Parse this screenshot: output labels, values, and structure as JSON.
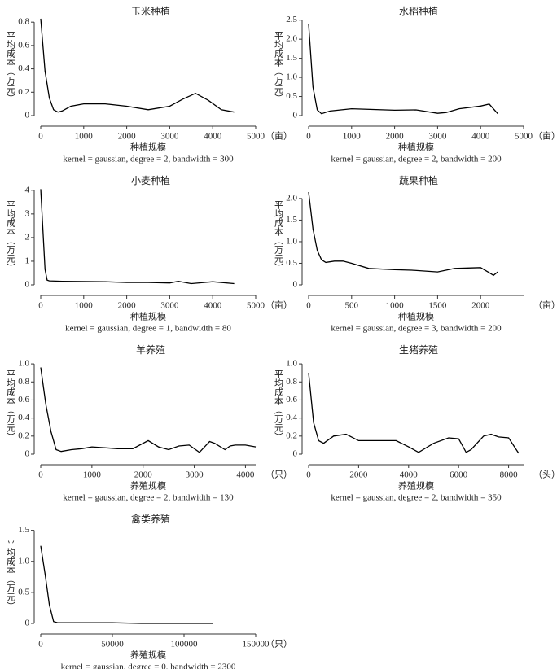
{
  "chart_data": [
    {
      "type": "line",
      "title": "玉米种植",
      "y_label": "平均成本（万元）",
      "x_label": "种植规模",
      "x_unit": "（亩）",
      "note": "kernel = gaussian, degree = 2, bandwidth = 300",
      "color": "#000000",
      "xlim": [
        0,
        5000
      ],
      "xticks": [
        0,
        1000,
        2000,
        3000,
        4000,
        5000
      ],
      "ylim": [
        0,
        0.85
      ],
      "yticks": [
        0,
        0.2,
        0.4,
        0.6,
        0.8
      ],
      "x": [
        0,
        100,
        200,
        300,
        400,
        500,
        700,
        1000,
        1500,
        2000,
        2500,
        3000,
        3300,
        3600,
        3900,
        4200,
        4500
      ],
      "values": [
        0.83,
        0.38,
        0.15,
        0.05,
        0.03,
        0.04,
        0.08,
        0.1,
        0.1,
        0.08,
        0.05,
        0.08,
        0.14,
        0.19,
        0.13,
        0.05,
        0.03
      ]
    },
    {
      "type": "line",
      "title": "水稻种植",
      "y_label": "平均成本（万元）",
      "x_label": "种植规模",
      "x_unit": "（亩）",
      "note": "kernel = gaussian, degree = 2, bandwidth = 200",
      "color": "#000000",
      "xlim": [
        0,
        5000
      ],
      "xticks": [
        0,
        1000,
        2000,
        3000,
        4000,
        5000
      ],
      "ylim": [
        0,
        2.6
      ],
      "yticks": [
        0,
        0.5,
        {
          "value": 1,
          "label": "1.0"
        },
        1.5,
        {
          "value": 2,
          "label": "2.0"
        },
        2.5
      ],
      "x": [
        0,
        100,
        200,
        300,
        500,
        1000,
        1500,
        2000,
        2500,
        3000,
        3200,
        3500,
        4000,
        4200,
        4400
      ],
      "values": [
        2.4,
        0.75,
        0.15,
        0.05,
        0.12,
        0.18,
        0.16,
        0.14,
        0.15,
        0.06,
        0.08,
        0.18,
        0.25,
        0.3,
        0.05
      ]
    },
    {
      "type": "line",
      "title": "小麦种植",
      "y_label": "平均成本（万元）",
      "x_label": "种植规模",
      "x_unit": "（亩）",
      "note": "kernel = gaussian, degree = 1, bandwidth = 80",
      "color": "#000000",
      "xlim": [
        0,
        5000
      ],
      "xticks": [
        0,
        1000,
        2000,
        3000,
        4000,
        5000
      ],
      "ylim": [
        0,
        4.2
      ],
      "yticks": [
        0,
        1,
        2,
        3,
        4
      ],
      "x": [
        0,
        100,
        150,
        200,
        500,
        1000,
        1500,
        2000,
        2500,
        3000,
        3200,
        3500,
        4000,
        4500
      ],
      "values": [
        4.05,
        0.65,
        0.2,
        0.17,
        0.15,
        0.14,
        0.13,
        0.1,
        0.1,
        0.08,
        0.15,
        0.05,
        0.13,
        0.05
      ]
    },
    {
      "type": "line",
      "title": "蔬果种植",
      "y_label": "平均成本（万元）",
      "x_label": "种植规模",
      "x_unit": "（亩）",
      "note": "kernel = gaussian, degree = 3, bandwidth = 200",
      "color": "#000000",
      "xlim": [
        0,
        2500
      ],
      "xticks": [
        0,
        500,
        1000,
        1500,
        2000
      ],
      "ylim": [
        0,
        2.3
      ],
      "yticks": [
        0,
        0.5,
        {
          "value": 1,
          "label": "1.0"
        },
        1.5,
        {
          "value": 2,
          "label": "2.0"
        }
      ],
      "x": [
        0,
        50,
        100,
        150,
        200,
        300,
        400,
        500,
        700,
        1000,
        1200,
        1500,
        1700,
        2000,
        2100,
        2150,
        2200
      ],
      "values": [
        2.15,
        1.3,
        0.8,
        0.58,
        0.52,
        0.55,
        0.55,
        0.5,
        0.38,
        0.35,
        0.34,
        0.3,
        0.38,
        0.4,
        0.28,
        0.22,
        0.3
      ]
    },
    {
      "type": "line",
      "title": "羊养殖",
      "y_label": "平均成本（万元）",
      "x_label": "养殖规模",
      "x_unit": "（只）",
      "note": "kernel = gaussian, degree = 2, bandwidth = 130",
      "color": "#000000",
      "xlim": [
        0,
        4200
      ],
      "xticks": [
        0,
        1000,
        2000,
        3000,
        4000
      ],
      "ylim": [
        0,
        1.1
      ],
      "yticks": [
        0,
        0.2,
        0.4,
        0.6,
        0.8,
        {
          "value": 1,
          "label": "1.0"
        }
      ],
      "x": [
        0,
        100,
        200,
        300,
        400,
        600,
        800,
        1000,
        1500,
        1800,
        2100,
        2300,
        2500,
        2700,
        2900,
        3100,
        3300,
        3400,
        3600,
        3700,
        3800,
        4000,
        4200
      ],
      "values": [
        0.96,
        0.55,
        0.25,
        0.05,
        0.03,
        0.05,
        0.06,
        0.08,
        0.06,
        0.06,
        0.15,
        0.08,
        0.05,
        0.09,
        0.1,
        0.02,
        0.14,
        0.12,
        0.05,
        0.09,
        0.1,
        0.1,
        0.08
      ]
    },
    {
      "type": "line",
      "title": "生猪养殖",
      "y_label": "平均成本（万元）",
      "x_label": "养殖规模",
      "x_unit": "（头）",
      "note": "kernel = gaussian, degree = 2, bandwidth = 350",
      "color": "#000000",
      "xlim": [
        0,
        8600
      ],
      "xticks": [
        0,
        2000,
        4000,
        6000,
        8000
      ],
      "ylim": [
        0,
        1.1
      ],
      "yticks": [
        0,
        0.2,
        0.4,
        0.6,
        0.8,
        {
          "value": 1,
          "label": "1.0"
        }
      ],
      "x": [
        0,
        200,
        400,
        600,
        1000,
        1500,
        2000,
        3000,
        3500,
        4000,
        4400,
        5000,
        5600,
        6000,
        6300,
        6500,
        7000,
        7300,
        7600,
        8000,
        8400
      ],
      "values": [
        0.9,
        0.35,
        0.15,
        0.12,
        0.2,
        0.22,
        0.15,
        0.15,
        0.15,
        0.08,
        0.02,
        0.12,
        0.18,
        0.17,
        0.02,
        0.05,
        0.2,
        0.22,
        0.19,
        0.18,
        0.01
      ]
    },
    {
      "type": "line",
      "title": "禽类养殖",
      "y_label": "平均成本（万元）",
      "x_label": "养殖规模",
      "x_unit": "（只）",
      "note": "kernel = gaussian, degree = 0, bandwidth = 2300",
      "color": "#000000",
      "xlim": [
        0,
        150000
      ],
      "xticks": [
        0,
        50000,
        100000,
        150000
      ],
      "ylim": [
        0,
        1.6
      ],
      "yticks": [
        0,
        0.5,
        {
          "value": 1,
          "label": "1.0"
        },
        1.5
      ],
      "x": [
        0,
        3000,
        6000,
        9000,
        12000,
        20000,
        50000,
        70000,
        90000,
        120000
      ],
      "values": [
        1.25,
        0.8,
        0.3,
        0.03,
        0.01,
        0.01,
        0.01,
        0,
        0,
        0
      ]
    }
  ]
}
